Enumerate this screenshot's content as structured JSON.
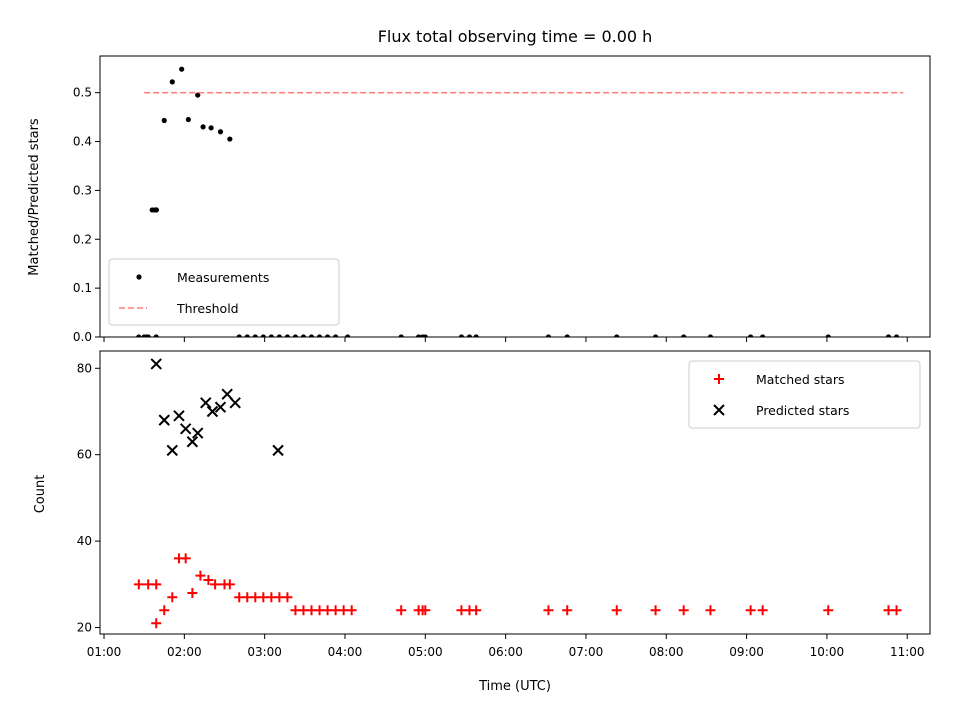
{
  "chart_data": [
    {
      "type": "scatter",
      "title": "Flux total observing time = 0.00 h",
      "ylabel": "Matched/Predicted stars",
      "xlabel": "",
      "ylim": [
        0,
        0.575
      ],
      "xlim": [
        "00:57",
        "11:17"
      ],
      "y_ticks": [
        "0.0",
        "0.1",
        "0.2",
        "0.3",
        "0.4",
        "0.5"
      ],
      "legend": {
        "position": "lower-left"
      },
      "series": [
        {
          "name": "Measurements",
          "kind": "scatter",
          "marker": "dot",
          "color": "#000000",
          "x": [
            "01:26",
            "01:33",
            "01:39",
            "01:39",
            "01:39",
            "01:39",
            "01:39",
            "01:38",
            "01:36",
            "01:32",
            "01:30",
            "02:03",
            "02:10",
            "02:14",
            "02:20",
            "02:27",
            "02:34",
            "01:58",
            "01:51",
            "01:45",
            "02:41",
            "02:47",
            "02:53",
            "02:59",
            "03:05",
            "03:11",
            "03:17",
            "03:23",
            "03:29",
            "03:35",
            "03:41",
            "03:47",
            "03:53",
            "04:02",
            "04:42",
            "04:55",
            "04:58",
            "05:00",
            "05:27",
            "05:33",
            "05:38",
            "06:32",
            "06:46",
            "07:23",
            "07:52",
            "08:13",
            "08:33",
            "09:03",
            "09:12",
            "10:01",
            "10:46",
            "10:52"
          ],
          "y": [
            0,
            0,
            0,
            0.26,
            0.26,
            0.26,
            0.26,
            0.26,
            0.26,
            0,
            0,
            0.445,
            0.495,
            0.43,
            0.428,
            0.42,
            0.405,
            0.548,
            0.522,
            0.443,
            0,
            0,
            0,
            0,
            0,
            0,
            0,
            0,
            0,
            0,
            0,
            0,
            0,
            0,
            0,
            0,
            0,
            0,
            0,
            0,
            0,
            0,
            0,
            0,
            0,
            0,
            0,
            0,
            0,
            0,
            0,
            0
          ]
        },
        {
          "name": "Threshold",
          "kind": "line",
          "dash": true,
          "color": "#ff7f7f",
          "x": [
            "01:30",
            "10:57"
          ],
          "y": [
            0.5,
            0.5
          ]
        }
      ]
    },
    {
      "type": "scatter",
      "title": "",
      "xlabel": "Time (UTC)",
      "ylabel": "Count",
      "ylim": [
        18.5,
        84
      ],
      "xlim": [
        "00:57",
        "11:17"
      ],
      "x_ticks": [
        "01:00",
        "02:00",
        "03:00",
        "04:00",
        "05:00",
        "06:00",
        "07:00",
        "08:00",
        "09:00",
        "10:00",
        "11:00"
      ],
      "y_ticks": [
        "20",
        "40",
        "60",
        "80"
      ],
      "legend": {
        "position": "top-right"
      },
      "series": [
        {
          "name": "Matched stars",
          "kind": "scatter",
          "marker": "plus",
          "color": "#ff0000",
          "x": [
            "01:26",
            "01:33",
            "01:39",
            "01:39",
            "01:45",
            "01:51",
            "01:56",
            "02:01",
            "02:06",
            "02:12",
            "02:18",
            "02:23",
            "02:30",
            "02:34",
            "02:41",
            "02:47",
            "02:53",
            "02:59",
            "03:05",
            "03:11",
            "03:17",
            "03:23",
            "03:29",
            "03:35",
            "03:41",
            "03:47",
            "03:53",
            "03:59",
            "04:05",
            "04:42",
            "04:55",
            "04:58",
            "05:00",
            "05:27",
            "05:33",
            "05:38",
            "06:32",
            "06:46",
            "07:23",
            "07:52",
            "08:13",
            "08:33",
            "09:03",
            "09:12",
            "10:01",
            "10:46",
            "10:52"
          ],
          "y": [
            30,
            30,
            30,
            21,
            24,
            27,
            36,
            36,
            28,
            32,
            31,
            30,
            30,
            30,
            27,
            27,
            27,
            27,
            27,
            27,
            27,
            24,
            24,
            24,
            24,
            24,
            24,
            24,
            24,
            24,
            24,
            24,
            24,
            24,
            24,
            24,
            24,
            24,
            24,
            24,
            24,
            24,
            24,
            24,
            24,
            24,
            24
          ]
        },
        {
          "name": "Predicted stars",
          "kind": "scatter",
          "marker": "x",
          "color": "#000000",
          "x": [
            "01:39",
            "01:45",
            "01:51",
            "01:56",
            "02:01",
            "02:06",
            "02:10",
            "02:16",
            "02:21",
            "02:27",
            "02:32",
            "02:38",
            "03:10"
          ],
          "y": [
            81,
            68,
            61,
            69,
            66,
            63,
            65,
            72,
            70,
            71,
            74,
            72,
            61
          ]
        }
      ]
    }
  ]
}
